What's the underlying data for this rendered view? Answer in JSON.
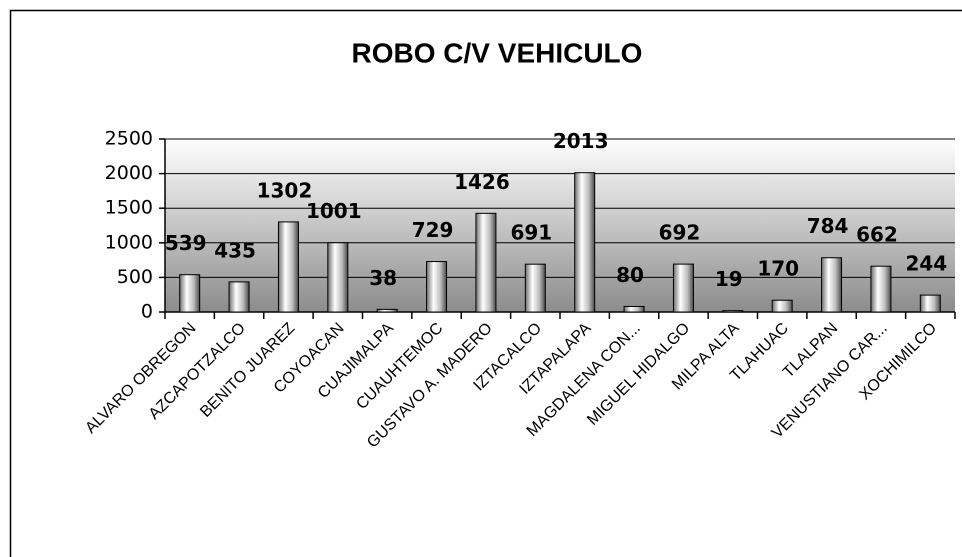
{
  "chart_data": {
    "type": "bar",
    "title": "ROBO C/V VEHICULO",
    "categories": [
      "ALVARO OBREGON",
      "AZCAPOTZALCO",
      "BENITO JUAREZ",
      "COYOACAN",
      "CUAJIMALPA",
      "CUAUHTEMOC",
      "GUSTAVO A. MADERO",
      "IZTACALCO",
      "IZTAPALAPA",
      "MAGDALENA CON...",
      "MIGUEL HIDALGO",
      "MILPA ALTA",
      "TLAHUAC",
      "TLALPAN",
      "VENUSTIANO CAR...",
      "XOCHIMILCO"
    ],
    "values": [
      539,
      435,
      1302,
      1001,
      38,
      729,
      1426,
      691,
      2013,
      80,
      692,
      19,
      170,
      784,
      662,
      244
    ],
    "color": "#d9d9d9",
    "ylim": [
      0,
      2500
    ],
    "yticks": [
      0,
      500,
      1000,
      1500,
      2000,
      2500
    ],
    "grid": true
  }
}
